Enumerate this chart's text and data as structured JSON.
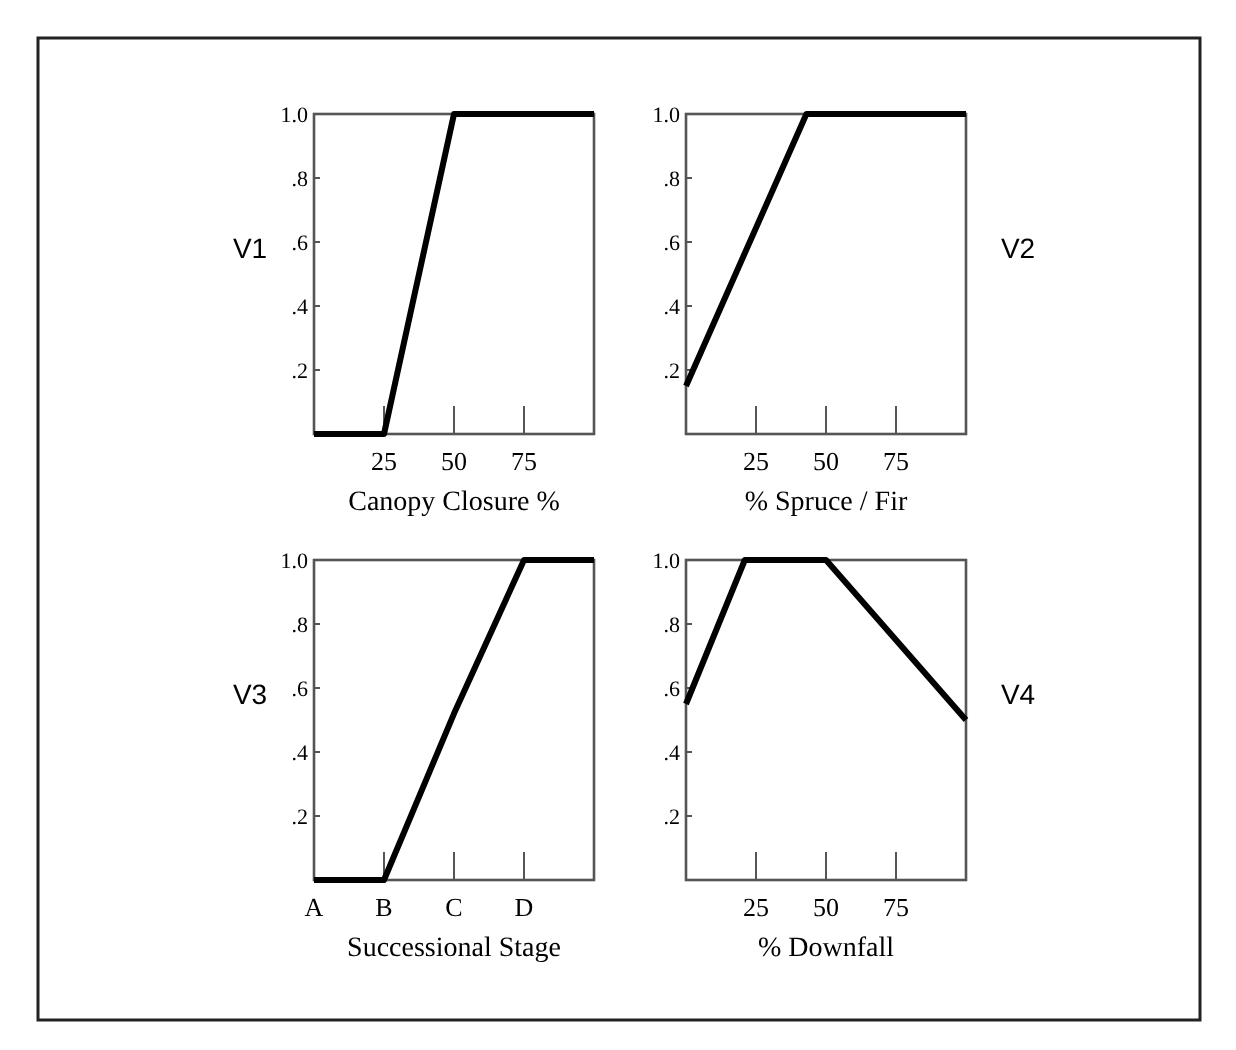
{
  "chart_data": [
    {
      "type": "line",
      "ylabel": "V1",
      "xlabel": "Canopy Closure %",
      "x": [
        0,
        25,
        50,
        100
      ],
      "xlim": [
        0,
        100
      ],
      "xticks": [
        25,
        50,
        75
      ],
      "ylim": [
        0,
        1
      ],
      "yticks": [
        {
          "value": 0.2,
          "label": ".2"
        },
        {
          "value": 0.4,
          "label": ".4"
        },
        {
          "value": 0.6,
          "label": ".6"
        },
        {
          "value": 0.8,
          "label": ".8"
        },
        {
          "value": 1,
          "label": "1.0"
        }
      ],
      "series": [
        {
          "color": "#000000",
          "values": [
            0,
            0,
            1,
            1
          ]
        }
      ]
    },
    {
      "type": "line",
      "ylabel": "V2",
      "xlabel": "% Spruce / Fir",
      "x": [
        0,
        43,
        100
      ],
      "xlim": [
        0,
        100
      ],
      "xticks": [
        25,
        50,
        75
      ],
      "ylim": [
        0,
        1
      ],
      "yticks": [
        {
          "value": 0.2,
          "label": ".2"
        },
        {
          "value": 0.4,
          "label": ".4"
        },
        {
          "value": 0.6,
          "label": ".6"
        },
        {
          "value": 0.8,
          "label": ".8"
        },
        {
          "value": 1,
          "label": "1.0"
        }
      ],
      "series": [
        {
          "color": "#000000",
          "values": [
            0.15,
            1,
            1
          ]
        }
      ]
    },
    {
      "type": "line",
      "ylabel": "V3",
      "xlabel": "Successional Stage",
      "categories": [
        "A",
        "B",
        "C",
        "D",
        null
      ],
      "ylim": [
        0,
        1
      ],
      "yticks": [
        {
          "value": 0.2,
          "label": ".2"
        },
        {
          "value": 0.4,
          "label": ".4"
        },
        {
          "value": 0.6,
          "label": ".6"
        },
        {
          "value": 0.8,
          "label": ".8"
        },
        {
          "value": 1,
          "label": "1.0"
        }
      ],
      "series": [
        {
          "color": "#000000",
          "values": [
            0,
            0,
            0.52,
            1,
            1
          ]
        }
      ]
    },
    {
      "type": "line",
      "ylabel": "V4",
      "xlabel": "% Downfall",
      "x": [
        0,
        21,
        50,
        100
      ],
      "xlim": [
        0,
        100
      ],
      "xticks": [
        25,
        50,
        75
      ],
      "ylim": [
        0,
        1
      ],
      "yticks": [
        {
          "value": 0.2,
          "label": ".2"
        },
        {
          "value": 0.4,
          "label": ".4"
        },
        {
          "value": 0.6,
          "label": ".6"
        },
        {
          "value": 0.8,
          "label": ".8"
        },
        {
          "value": 1,
          "label": "1.0"
        }
      ],
      "series": [
        {
          "color": "#000000",
          "values": [
            0.55,
            1,
            1,
            0.5
          ]
        }
      ]
    }
  ]
}
